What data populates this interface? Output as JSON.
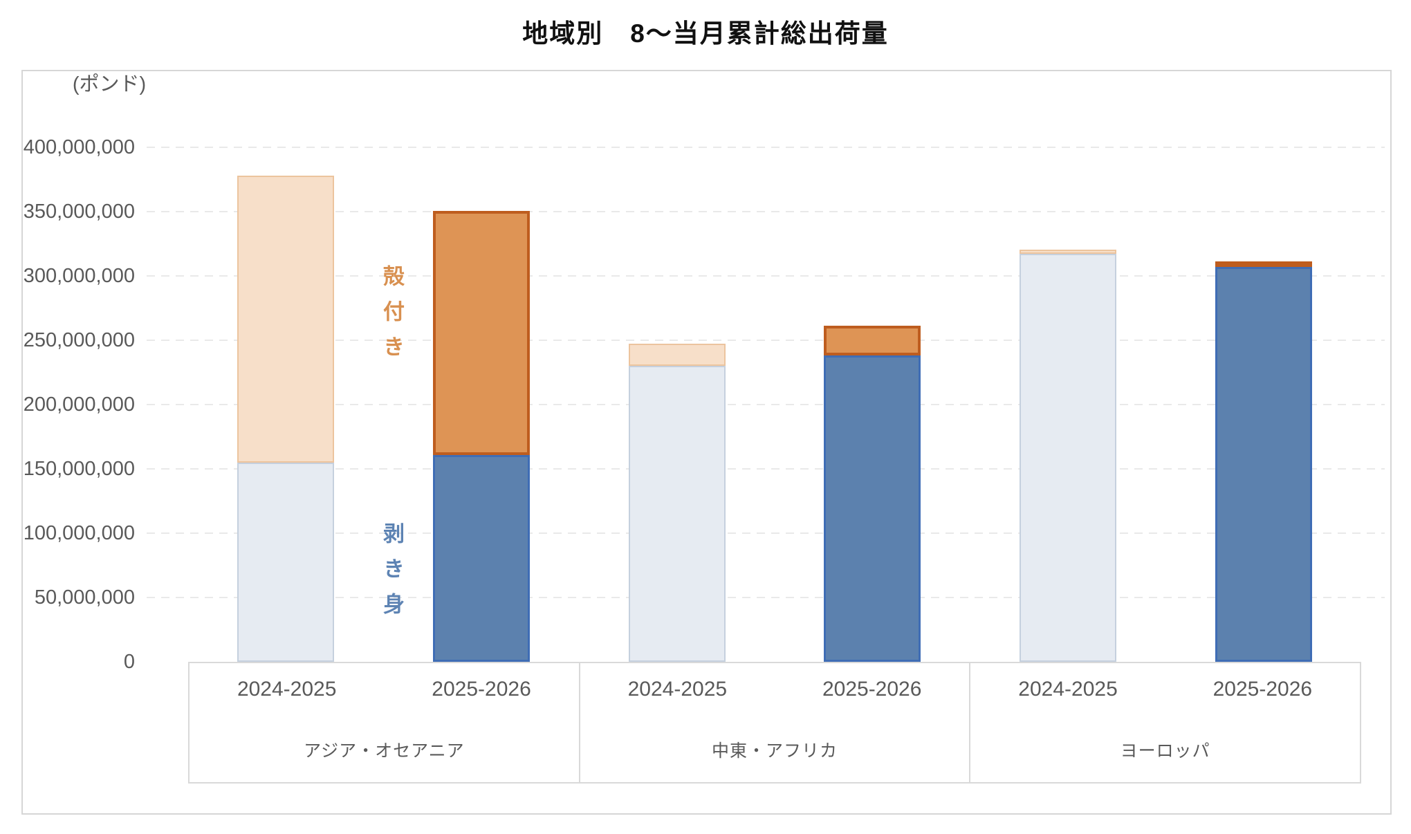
{
  "chart": {
    "title": "地域別　8〜当月累計総出荷量",
    "unit_label": "(ポンド)",
    "series_labels": {
      "shell_on": "殻付き",
      "peeled": "剥き身"
    }
  },
  "style": {
    "shell_on_prev_fill": "#f7dfc9",
    "shell_on_prev_border": "#ecc49e",
    "shell_on_curr_fill": "#de9455",
    "shell_on_curr_border": "#be5d1f",
    "peeled_prev_fill": "#e6ebf2",
    "peeled_prev_border": "#c5d0de",
    "peeled_curr_fill": "#5c81ae",
    "peeled_curr_border": "#3f6db5",
    "shell_on_label_color": "#d89050",
    "peeled_label_color": "#5d83b3",
    "axis_text_color": "#595959",
    "gridline_color": "#e9e9e9",
    "frame_color": "#d9d9d9"
  },
  "chart_data": {
    "type": "bar",
    "stacked": true,
    "title": "地域別　8〜当月累計総出荷量",
    "unit": "ポンド",
    "ylabel": "(ポンド)",
    "ylim": [
      0,
      400000000
    ],
    "ytick_step": 50000000,
    "ytick_labels": [
      "0",
      "50,000,000",
      "100,000,000",
      "150,000,000",
      "200,000,000",
      "250,000,000",
      "300,000,000",
      "350,000,000",
      "400,000,000"
    ],
    "grid": "horizontal-dashed",
    "legend": "series labels drawn vertically inside plot: 殻付き (orange), 剥き身 (blue)",
    "series_names": [
      "剥き身",
      "殻付き"
    ],
    "groups": [
      {
        "region": "アジア・オセアニア",
        "bars": [
          {
            "season": "2024-2025",
            "peeled": 155000000,
            "shell_on": 223000000,
            "total": 378000000
          },
          {
            "season": "2025-2026",
            "peeled": 161000000,
            "shell_on": 190000000,
            "total": 351000000
          }
        ]
      },
      {
        "region": "中東・アフリカ",
        "bars": [
          {
            "season": "2024-2025",
            "peeled": 230000000,
            "shell_on": 17000000,
            "total": 247000000
          },
          {
            "season": "2025-2026",
            "peeled": 238000000,
            "shell_on": 23000000,
            "total": 261000000
          }
        ]
      },
      {
        "region": "ヨーロッパ",
        "bars": [
          {
            "season": "2024-2025",
            "peeled": 317000000,
            "shell_on": 3000000,
            "total": 320000000
          },
          {
            "season": "2025-2026",
            "peeled": 307000000,
            "shell_on": 4000000,
            "total": 311000000
          }
        ]
      }
    ]
  }
}
